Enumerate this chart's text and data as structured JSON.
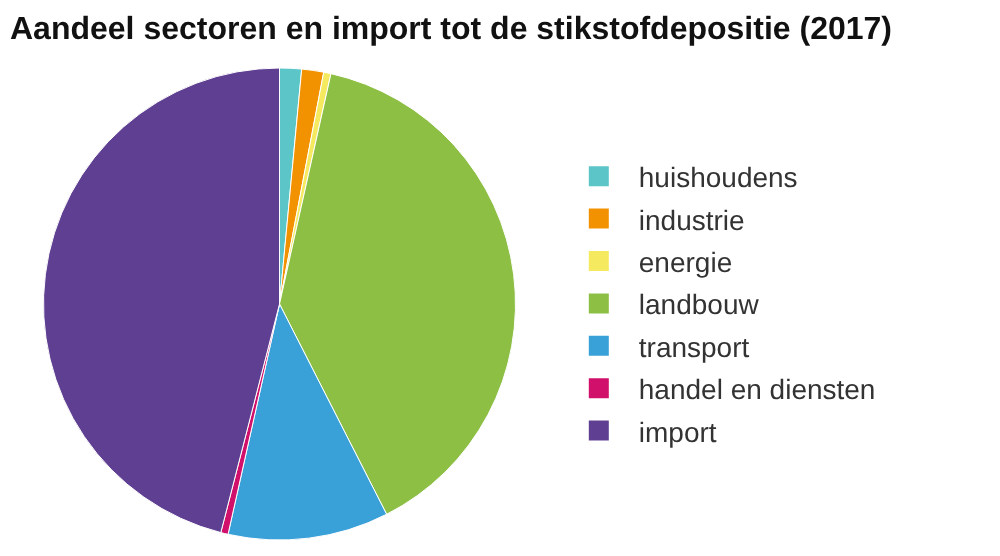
{
  "chart_data": {
    "type": "pie",
    "title": "Aandeel sectoren en import tot de stikstofdepositie (2017)",
    "categories": [
      "huishoudens",
      "industrie",
      "energie",
      "landbouw",
      "transport",
      "handel en diensten",
      "import"
    ],
    "values": [
      1.5,
      1.5,
      0.5,
      39,
      11,
      0.5,
      46
    ],
    "colors": [
      "#5bc5c8",
      "#f39200",
      "#f5e960",
      "#8dbf45",
      "#3aa0d8",
      "#d0106a",
      "#5e3f92"
    ],
    "legend": "right"
  }
}
